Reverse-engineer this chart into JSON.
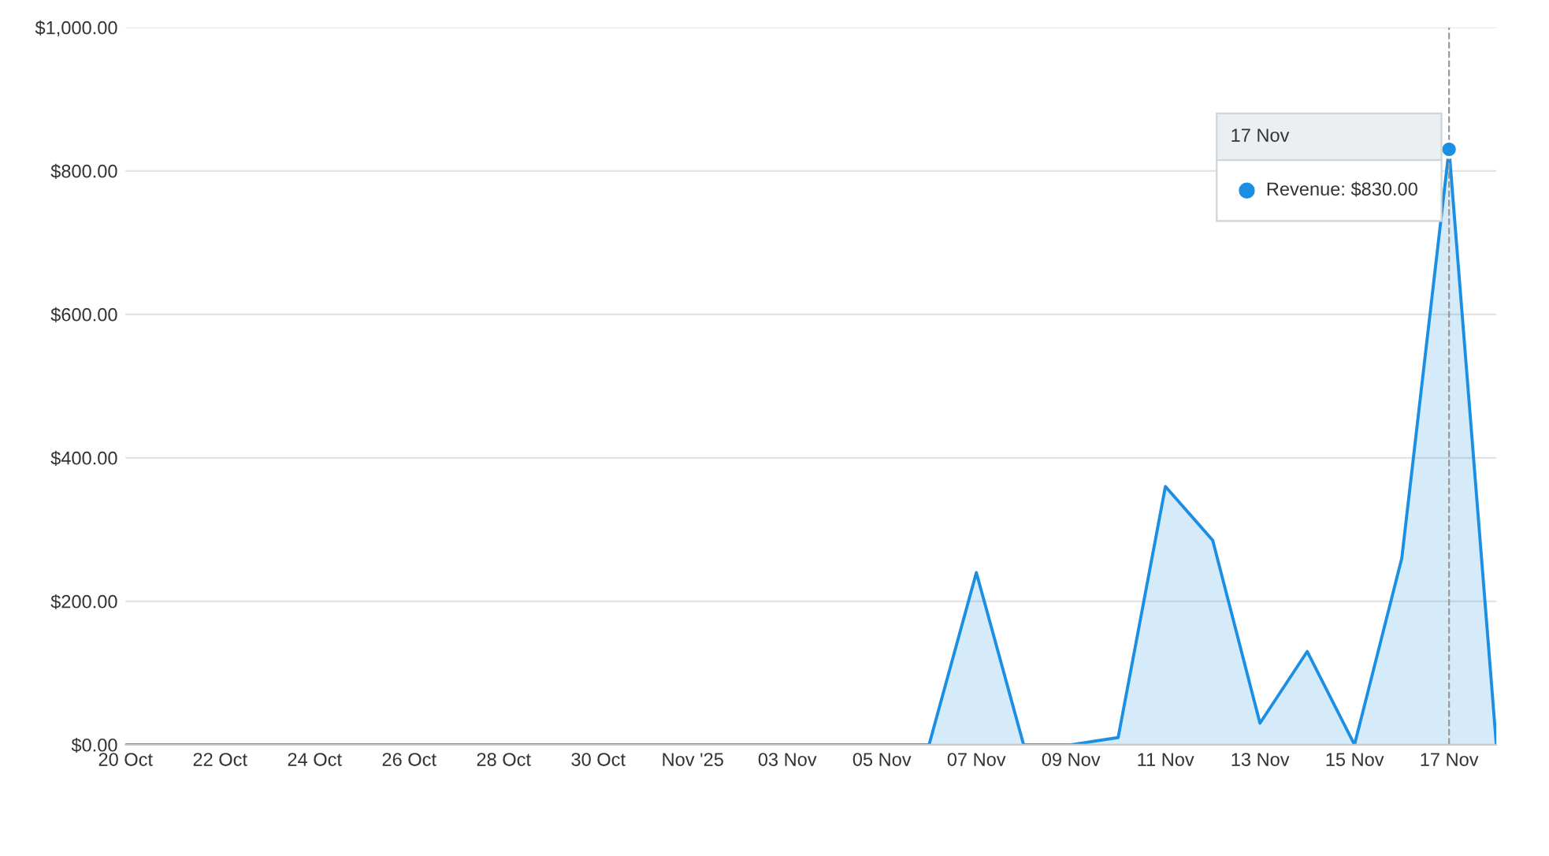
{
  "chart_data": {
    "type": "area",
    "x": [
      "2025-10-20",
      "2025-10-21",
      "2025-10-22",
      "2025-10-23",
      "2025-10-24",
      "2025-10-25",
      "2025-10-26",
      "2025-10-27",
      "2025-10-28",
      "2025-10-29",
      "2025-10-30",
      "2025-10-31",
      "2025-11-01",
      "2025-11-02",
      "2025-11-03",
      "2025-11-04",
      "2025-11-05",
      "2025-11-06",
      "2025-11-07",
      "2025-11-08",
      "2025-11-09",
      "2025-11-10",
      "2025-11-11",
      "2025-11-12",
      "2025-11-13",
      "2025-11-14",
      "2025-11-15",
      "2025-11-16",
      "2025-11-17",
      "2025-11-18"
    ],
    "series": [
      {
        "color": "#1a8fe3",
        "values": [
          0,
          0,
          0,
          0,
          0,
          0,
          0,
          0,
          0,
          0,
          0,
          0,
          0,
          0,
          0,
          0,
          0,
          0,
          240,
          0,
          0,
          10,
          360,
          285,
          30,
          130,
          0,
          260,
          830,
          0
        ]
      }
    ],
    "xlim": [
      "2025-10-20",
      "2025-11-18"
    ],
    "xticks": [
      {
        "value": "2025-10-20",
        "label": "20 Oct"
      },
      {
        "value": "2025-10-22",
        "label": "22 Oct"
      },
      {
        "value": "2025-10-24",
        "label": "24 Oct"
      },
      {
        "value": "2025-10-26",
        "label": "26 Oct"
      },
      {
        "value": "2025-10-28",
        "label": "28 Oct"
      },
      {
        "value": "2025-10-30",
        "label": "30 Oct"
      },
      {
        "value": "2025-11-01",
        "label": "Nov '25"
      },
      {
        "value": "2025-11-03",
        "label": "03 Nov"
      },
      {
        "value": "2025-11-05",
        "label": "05 Nov"
      },
      {
        "value": "2025-11-07",
        "label": "07 Nov"
      },
      {
        "value": "2025-11-09",
        "label": "09 Nov"
      },
      {
        "value": "2025-11-11",
        "label": "11 Nov"
      },
      {
        "value": "2025-11-13",
        "label": "13 Nov"
      },
      {
        "value": "2025-11-15",
        "label": "15 Nov"
      },
      {
        "value": "2025-11-17",
        "label": "17 Nov"
      }
    ],
    "ylim": [
      0,
      1000
    ],
    "yticks": [
      {
        "value": 0,
        "label": "$0.00"
      },
      {
        "value": 200,
        "label": "$200.00"
      },
      {
        "value": 400,
        "label": "$400.00"
      },
      {
        "value": 600,
        "label": "$600.00"
      },
      {
        "value": 800,
        "label": "$800.00"
      },
      {
        "value": 1000,
        "label": "$1,000.00"
      }
    ],
    "grid": "y",
    "ref_lines": [
      {
        "axis": "x",
        "value": "2025-11-17",
        "color": "#999999",
        "line_style": "dashed"
      }
    ],
    "annotations": [
      "17 Nov",
      "Revenue: $830.00"
    ]
  }
}
